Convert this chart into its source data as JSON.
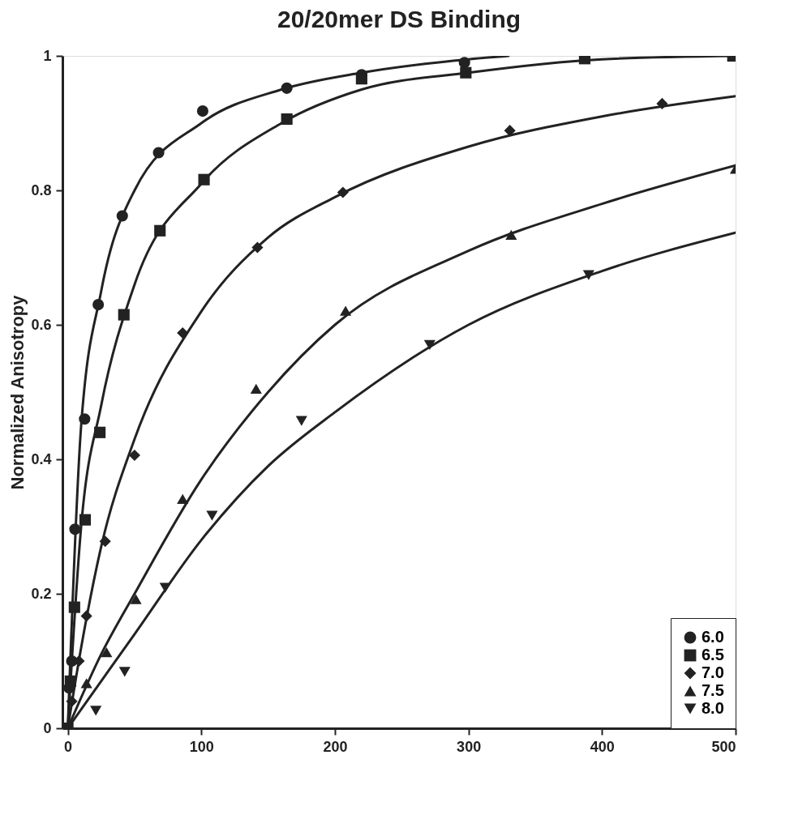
{
  "chart_data": {
    "type": "scatter",
    "title": "20/20mer DS Binding",
    "ylabel": "Normalized Anisotropy",
    "xlim": [
      -4,
      500
    ],
    "ylim": [
      0,
      1
    ],
    "xticks": [
      0,
      100,
      200,
      300,
      400,
      500
    ],
    "yticks": [
      0,
      0.2,
      0.4,
      0.6,
      0.8,
      1
    ],
    "grid": false,
    "legend": "bottom right",
    "series": [
      {
        "name": "6.0",
        "color": "#222222",
        "marker": "circle",
        "x": [
          1,
          3,
          5.4,
          12.6,
          22.8,
          40.8,
          68,
          101,
          164,
          220,
          297
        ],
        "values": [
          0.06,
          0.1,
          0.296,
          0.46,
          0.63,
          0.762,
          0.856,
          0.918,
          0.952,
          0.972,
          0.99
        ]
      },
      {
        "name": "6.5",
        "color": "#222222",
        "marker": "square",
        "x": [
          0,
          2,
          5,
          13,
          24,
          42,
          69,
          102,
          164,
          220,
          298,
          387,
          498
        ],
        "values": [
          0,
          0.07,
          0.18,
          0.31,
          0.44,
          0.615,
          0.74,
          0.816,
          0.906,
          0.966,
          0.975,
          0.996,
          1.0
        ]
      },
      {
        "name": "7.0",
        "color": "#222222",
        "marker": "diamond",
        "x": [
          3,
          8.4,
          14,
          28,
          50,
          86,
          142,
          206,
          331,
          445
        ],
        "values": [
          0.04,
          0.1,
          0.167,
          0.278,
          0.406,
          0.588,
          0.715,
          0.797,
          0.889,
          0.929
        ]
      },
      {
        "name": "7.5",
        "color": "#222222",
        "marker": "triangle",
        "x": [
          14,
          29,
          51,
          86,
          141,
          208,
          332,
          500
        ],
        "values": [
          0.067,
          0.113,
          0.192,
          0.341,
          0.505,
          0.621,
          0.734,
          0.832
        ]
      },
      {
        "name": "8.0",
        "color": "#222222",
        "marker": "triangle-down",
        "x": [
          21,
          42.6,
          73,
          108,
          175,
          271,
          390
        ],
        "values": [
          0.026,
          0.084,
          0.209,
          0.316,
          0.457,
          0.57,
          0.674
        ]
      },
      {
        "type": "line",
        "color": "#222222",
        "x": [
          0,
          10,
          25,
          50,
          100,
          160,
          220,
          300,
          330
        ],
        "values": [
          0,
          0.45,
          0.65,
          0.8,
          0.9,
          0.95,
          0.975,
          0.995,
          1.0
        ]
      },
      {
        "type": "line",
        "color": "#222222",
        "x": [
          0,
          10,
          25,
          50,
          100,
          160,
          220,
          300,
          400,
          500
        ],
        "values": [
          0,
          0.3,
          0.48,
          0.66,
          0.81,
          0.9,
          0.95,
          0.975,
          0.995,
          1.0
        ]
      },
      {
        "type": "line",
        "color": "#222222",
        "x": [
          0,
          10,
          25,
          50,
          100,
          150,
          200,
          300,
          400,
          500
        ],
        "values": [
          0,
          0.12,
          0.27,
          0.43,
          0.62,
          0.73,
          0.79,
          0.865,
          0.91,
          0.94
        ]
      },
      {
        "type": "line",
        "color": "#222222",
        "x": [
          0,
          25,
          50,
          100,
          150,
          200,
          300,
          400,
          500
        ],
        "values": [
          0,
          0.11,
          0.2,
          0.37,
          0.5,
          0.6,
          0.71,
          0.78,
          0.837
        ]
      },
      {
        "type": "line",
        "color": "#222222",
        "x": [
          0,
          25,
          50,
          100,
          150,
          200,
          300,
          400,
          500
        ],
        "values": [
          0,
          0.07,
          0.14,
          0.28,
          0.39,
          0.47,
          0.6,
          0.68,
          0.737
        ]
      }
    ]
  }
}
